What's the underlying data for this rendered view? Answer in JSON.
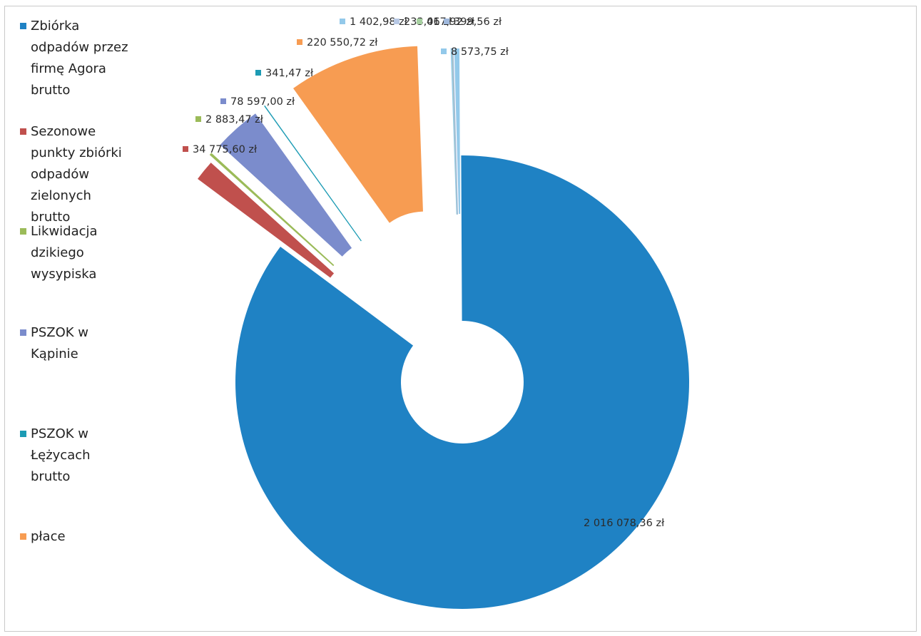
{
  "colors": {
    "zbiorka": "#1f82c4",
    "sezonowe": "#c0504d",
    "likwidacja": "#9bbb59",
    "pszok_kapinie": "#7b8ccc",
    "pszok_lezycach": "#1c9bb4",
    "place": "#f79c52",
    "other_a": "#93c9ea",
    "other_b": "#b8c9e5",
    "other_c": "#a6d0a0"
  },
  "legend": {
    "items": [
      {
        "label": "Zbiórka odpadów przez firmę Agora brutto",
        "color": "#1f82c4"
      },
      {
        "label": "Sezonowe punkty zbiórki odpadów zielonych brutto",
        "color": "#c0504d"
      },
      {
        "label": "Likwidacja dzikiego wysypiska",
        "color": "#9bbb59"
      },
      {
        "label": "PSZOK w Kąpinie",
        "color": "#7b8ccc"
      },
      {
        "label": "PSZOK w Łężycach brutto",
        "color": "#1c9bb4"
      },
      {
        "label": "płace",
        "color": "#f79c52"
      }
    ]
  },
  "chart_data": {
    "type": "pie",
    "donut": true,
    "exploded": true,
    "title": "",
    "legend_position": "left",
    "slices": [
      {
        "label": "Zbiórka odpadów przez firmę Agora brutto",
        "value": 2016078.36,
        "display": "2 016 078,36 zł",
        "color": "#1f82c4"
      },
      {
        "label": "Sezonowe punkty zbiórki odpadów zielonych brutto",
        "value": 34775.6,
        "display": "34 775,60 zł",
        "color": "#c0504d"
      },
      {
        "label": "Likwidacja dzikiego wysypiska",
        "value": 2883.47,
        "display": "2 883,47 zł",
        "color": "#9bbb59"
      },
      {
        "label": "PSZOK w Kąpinie",
        "value": 78597.0,
        "display": "78 597,00 zł",
        "color": "#7b8ccc"
      },
      {
        "label": "PSZOK w Łężycach brutto",
        "value": 341.47,
        "display": "341,47 zł",
        "color": "#1c9bb4"
      },
      {
        "label": "płace",
        "value": 220550.72,
        "display": "220 550,72 zł",
        "color": "#f79c52"
      },
      {
        "label": "",
        "value": 1402.98,
        "display": "1 402,98 zł",
        "color": "#93c9ea"
      },
      {
        "label": "",
        "value": 233.06,
        "display": "233,06 zł",
        "color": "#b8c9e5"
      },
      {
        "label": "",
        "value": 417.92,
        "display": "417,92 zł",
        "color": "#a6d0a0"
      },
      {
        "label": "",
        "value": 399.56,
        "display": "399,56 zł",
        "color": "#9fb8dc"
      },
      {
        "label": "",
        "value": 8573.75,
        "display": "8 573,75 zł",
        "color": "#93c9ea"
      }
    ]
  }
}
